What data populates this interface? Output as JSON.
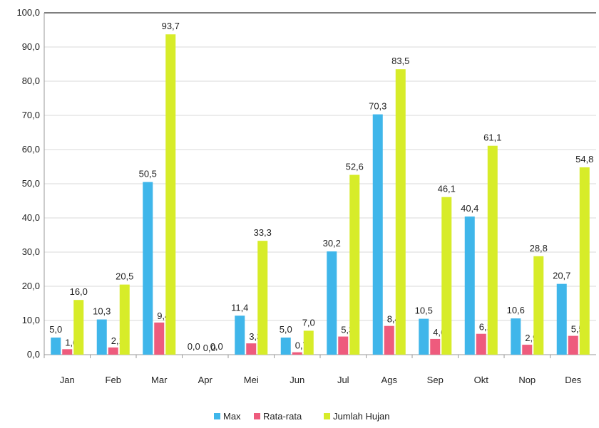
{
  "chart_data": {
    "type": "bar",
    "title": "",
    "xlabel": "",
    "ylabel": "",
    "ylim": [
      0,
      100
    ],
    "yticks": [
      "0,0",
      "10,0",
      "20,0",
      "30,0",
      "40,0",
      "50,0",
      "60,0",
      "70,0",
      "80,0",
      "90,0",
      "100,0"
    ],
    "grid": true,
    "legend_position": "bottom",
    "categories": [
      "Jan",
      "Feb",
      "Mar",
      "Apr",
      "Mei",
      "Jun",
      "Jul",
      "Ags",
      "Sep",
      "Okt",
      "Nop",
      "Des"
    ],
    "series": [
      {
        "name": "Max",
        "color": "#3fb6ea",
        "values": [
          5.0,
          10.3,
          50.5,
          0.0,
          11.4,
          5.0,
          30.2,
          70.3,
          10.5,
          40.4,
          10.6,
          20.7
        ],
        "labels": [
          "5,0",
          "10,3",
          "50,5",
          "0,0",
          "11,4",
          "5,0",
          "30,2",
          "70,3",
          "10,5",
          "40,4",
          "10,6",
          "20,7"
        ]
      },
      {
        "name": "Rata-rata",
        "color": "#ee5b7d",
        "values": [
          1.6,
          2.1,
          9.4,
          0.0,
          3.3,
          0.7,
          5.3,
          8.4,
          4.6,
          6.1,
          2.9,
          5.5
        ],
        "labels": [
          "1,6",
          "2,1",
          "9,4",
          "0,0",
          "3,3",
          "0,7",
          "5,3",
          "8,4",
          "4,6",
          "6,1",
          "2,9",
          "5,5"
        ]
      },
      {
        "name": "Jumlah Hujan",
        "color": "#d7ec29",
        "values": [
          16.0,
          20.5,
          93.7,
          0.0,
          33.3,
          7.0,
          52.6,
          83.5,
          46.1,
          61.1,
          28.8,
          54.8
        ],
        "labels": [
          "16,0",
          "20,5",
          "93,7",
          "0,0",
          "33,3",
          "7,0",
          "52,6",
          "83,5",
          "46,1",
          "61,1",
          "28,8",
          "54,8"
        ]
      }
    ]
  }
}
